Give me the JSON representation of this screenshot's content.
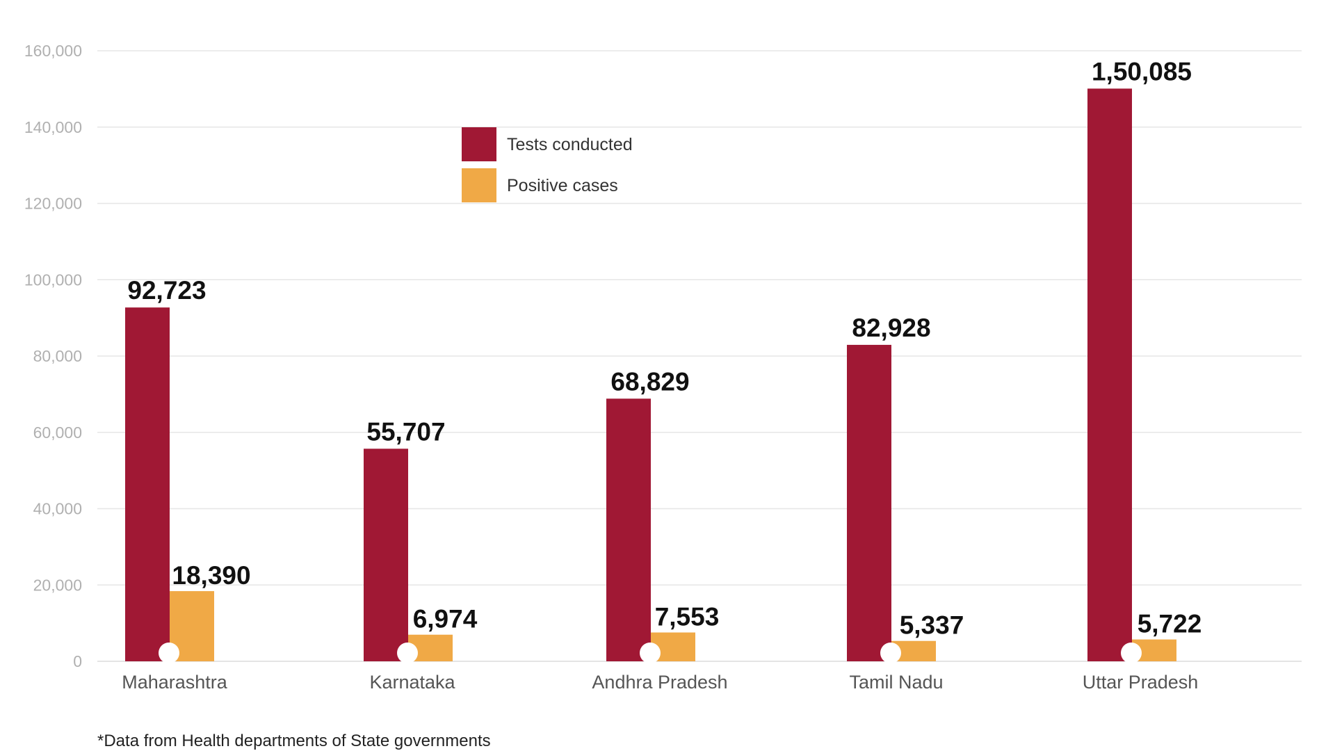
{
  "chart_data": {
    "type": "bar",
    "categories": [
      "Maharashtra",
      "Karnataka",
      "Andhra Pradesh",
      "Tamil Nadu",
      "Uttar Pradesh"
    ],
    "series": [
      {
        "name": "Tests conducted",
        "color": "#a01834",
        "values": [
          92723,
          55707,
          68829,
          82928,
          150085
        ],
        "labels": [
          "92,723",
          "55,707",
          "68,829",
          "82,928",
          "1,50,085"
        ]
      },
      {
        "name": "Positive cases",
        "color": "#f0a946",
        "values": [
          18390,
          6974,
          7553,
          5337,
          5722
        ],
        "labels": [
          "18,390",
          "6,974",
          "7,553",
          "5,337",
          "5,722"
        ]
      }
    ],
    "yticks": [
      0,
      20000,
      40000,
      60000,
      80000,
      100000,
      120000,
      140000,
      160000
    ],
    "ytick_labels": [
      "0",
      "20,000",
      "40,000",
      "60,000",
      "80,000",
      "100,000",
      "120,000",
      "140,000",
      "160,000"
    ],
    "ylim": [
      0,
      160000
    ],
    "grid": true,
    "legend_position": "top-center",
    "footnote": "*Data from Health departments of State governments"
  }
}
